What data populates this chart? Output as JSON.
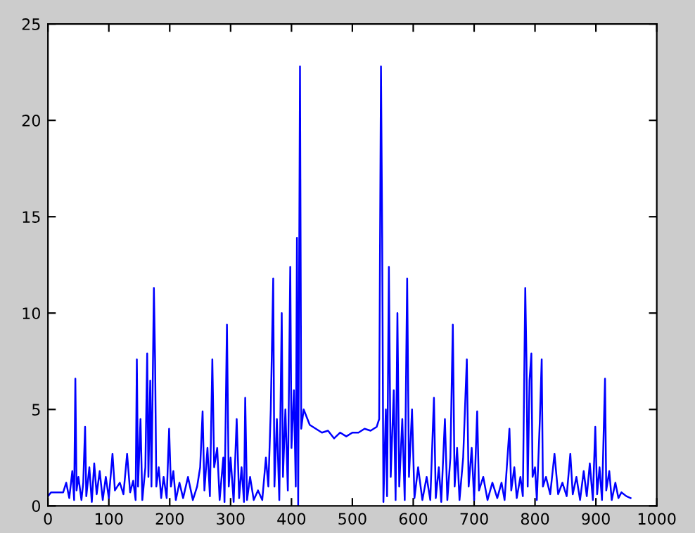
{
  "chart_data": {
    "type": "line",
    "x": [
      0,
      5,
      15,
      25,
      30,
      35,
      40,
      43,
      45,
      47,
      50,
      55,
      58,
      61,
      63,
      68,
      72,
      76,
      80,
      85,
      90,
      95,
      100,
      106,
      110,
      118,
      124,
      130,
      135,
      140,
      144,
      146,
      148,
      152,
      155,
      160,
      163,
      165,
      168,
      170,
      174,
      176,
      178,
      182,
      186,
      190,
      195,
      199,
      202,
      206,
      210,
      216,
      222,
      230,
      238,
      245,
      250,
      254,
      257,
      262,
      266,
      270,
      273,
      278,
      282,
      288,
      290,
      294,
      297,
      300,
      305,
      310,
      314,
      318,
      322,
      324,
      327,
      332,
      338,
      345,
      352,
      358,
      362,
      366,
      370,
      372,
      376,
      380,
      384,
      386,
      390,
      394,
      398,
      400,
      404,
      407,
      409,
      411,
      414,
      416,
      420,
      430,
      440,
      450,
      460,
      470,
      480,
      490,
      500,
      510,
      520,
      530,
      540,
      544,
      547,
      549,
      551,
      555,
      557,
      560,
      563,
      568,
      571,
      574,
      577,
      582,
      586,
      590,
      593,
      598,
      602,
      608,
      615,
      622,
      628,
      634,
      637,
      642,
      646,
      652,
      656,
      661,
      665,
      668,
      672,
      676,
      682,
      688,
      691,
      696,
      700,
      705,
      708,
      715,
      722,
      730,
      738,
      745,
      750,
      758,
      761,
      766,
      770,
      776,
      780,
      784,
      786,
      788,
      791,
      794,
      796,
      800,
      803,
      808,
      811,
      813,
      818,
      825,
      832,
      838,
      845,
      852,
      858,
      862,
      868,
      874,
      880,
      885,
      890,
      895,
      899,
      902,
      906,
      910,
      915,
      917,
      922,
      926,
      932,
      937,
      942,
      950,
      957
    ],
    "series": [
      {
        "color": "#0000ff",
        "values": [
          0.5,
          0.7,
          0.7,
          0.7,
          1.2,
          0.4,
          1.8,
          0.3,
          6.6,
          0.8,
          1.5,
          0.3,
          1.2,
          4.1,
          0.5,
          2.0,
          0.2,
          2.2,
          0.6,
          1.8,
          0.3,
          1.5,
          0.4,
          2.7,
          0.8,
          1.2,
          0.6,
          2.7,
          0.7,
          1.3,
          0.3,
          7.6,
          1.0,
          4.5,
          0.3,
          2.0,
          7.9,
          1.5,
          6.5,
          1.0,
          11.3,
          7.5,
          1.0,
          2.0,
          0.4,
          1.5,
          0.4,
          4.0,
          1.0,
          1.8,
          0.3,
          1.2,
          0.4,
          1.5,
          0.3,
          1.0,
          2.0,
          4.9,
          0.8,
          3.0,
          0.5,
          7.6,
          2.0,
          3.0,
          0.3,
          2.5,
          0.2,
          9.4,
          1.0,
          2.5,
          0.2,
          4.5,
          0.4,
          2.0,
          0.2,
          5.6,
          0.3,
          1.5,
          0.3,
          0.8,
          0.3,
          2.5,
          1.0,
          5.0,
          11.8,
          1.0,
          4.5,
          0.3,
          10.0,
          1.5,
          5.0,
          0.8,
          12.4,
          3.0,
          6.0,
          1.0,
          13.9,
          0.0,
          22.8,
          4.0,
          5.0,
          4.2,
          4.0,
          3.8,
          3.9,
          3.5,
          3.8,
          3.6,
          3.8,
          3.8,
          4.0,
          3.9,
          4.1,
          4.5,
          22.8,
          13.9,
          0.2,
          5.0,
          0.5,
          12.4,
          1.5,
          6.0,
          0.3,
          10.0,
          1.0,
          4.5,
          0.3,
          11.8,
          1.5,
          5.0,
          0.4,
          2.0,
          0.3,
          1.5,
          0.3,
          5.6,
          0.4,
          2.0,
          0.2,
          4.5,
          0.3,
          2.5,
          9.4,
          1.0,
          3.0,
          0.3,
          2.5,
          7.6,
          1.0,
          3.0,
          0.3,
          4.9,
          0.8,
          1.5,
          0.3,
          1.2,
          0.4,
          1.2,
          0.3,
          4.0,
          0.8,
          2.0,
          0.4,
          1.5,
          0.5,
          11.3,
          7.5,
          1.0,
          6.5,
          7.9,
          1.5,
          2.0,
          0.3,
          4.5,
          7.6,
          1.0,
          1.5,
          0.6,
          2.7,
          0.6,
          1.2,
          0.5,
          2.7,
          0.6,
          1.5,
          0.3,
          1.8,
          0.5,
          2.2,
          0.3,
          4.1,
          0.6,
          2.0,
          0.3,
          6.6,
          0.8,
          1.8,
          0.3,
          1.2,
          0.4,
          0.7,
          0.5,
          0.4
        ]
      }
    ],
    "xlim": [
      0,
      1000
    ],
    "xticks": [
      0,
      100,
      200,
      300,
      400,
      500,
      600,
      700,
      800,
      900,
      1000
    ],
    "ylim": [
      0,
      25
    ],
    "yticks": [
      0,
      5,
      10,
      15,
      20,
      25
    ],
    "grid": false,
    "legend": false,
    "marker": "none",
    "line_style": "solid"
  }
}
